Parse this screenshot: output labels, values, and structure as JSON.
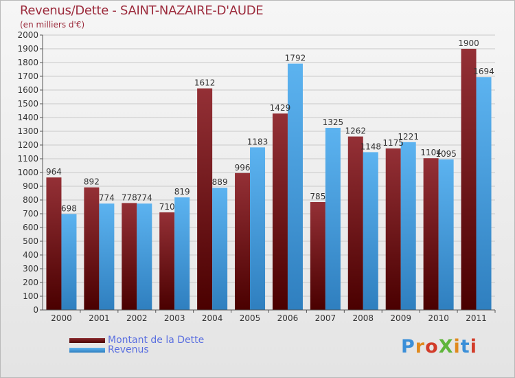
{
  "header": {
    "title": "Revenus/Dette - SAINT-NAZAIRE-D'AUDE",
    "subtitle": "(en milliers d'€)"
  },
  "legend": {
    "items": [
      {
        "label": "Montant de la Dette",
        "color": "#7a1a20"
      },
      {
        "label": "Revenus",
        "color": "#4aa3e6"
      }
    ]
  },
  "logo": {
    "text": "ProXiti",
    "letter_colors": [
      "#3b8fd8",
      "#e08a1e",
      "#d23c2a",
      "#5fb53b",
      "#e08a1e",
      "#3b8fd8",
      "#d23c2a"
    ]
  },
  "chart_data": {
    "type": "bar",
    "categories": [
      "2000",
      "2001",
      "2002",
      "2003",
      "2004",
      "2005",
      "2006",
      "2007",
      "2008",
      "2009",
      "2010",
      "2011"
    ],
    "series": [
      {
        "name": "Montant de la Dette",
        "color": "#7a1a20",
        "values": [
          964,
          892,
          778,
          710,
          1612,
          996,
          1429,
          785,
          1262,
          1175,
          1104,
          1900
        ]
      },
      {
        "name": "Revenus",
        "color": "#4aa3e6",
        "values": [
          698,
          774,
          774,
          819,
          889,
          1183,
          1792,
          1325,
          1148,
          1221,
          1095,
          1694
        ]
      }
    ],
    "value_labels": [
      [
        "964",
        "892",
        "778",
        "710",
        "1612",
        "996",
        "1429",
        "785",
        "1262",
        "1175",
        "1104",
        "1900"
      ],
      [
        "698",
        "774",
        "774",
        "819",
        "889",
        "1183",
        "1792",
        "1325",
        "1148",
        "1221",
        "1095",
        "1694"
      ]
    ],
    "yticks": [
      "0",
      "100",
      "200",
      "300",
      "400",
      "500",
      "600",
      "700",
      "800",
      "900",
      "1000",
      "1100",
      "1200",
      "1300",
      "1400",
      "1500",
      "1600",
      "1700",
      "1800",
      "1900",
      "2000"
    ],
    "ylim": [
      0,
      2000
    ],
    "grid": true,
    "legend_position": "bottom-left"
  }
}
